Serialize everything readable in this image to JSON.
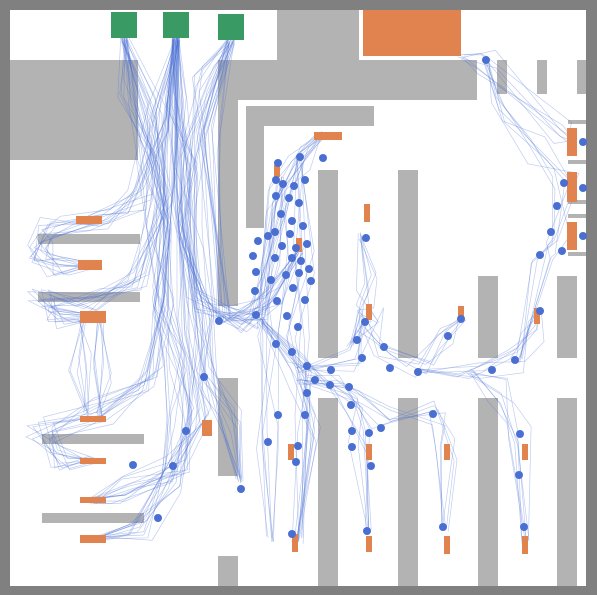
{
  "map": {
    "colors": {
      "frame": "#808080",
      "floor": "#ffffff",
      "wall": "#b3b3b3",
      "station": "#e0834f",
      "goal": "#3a9a64",
      "agent": "#4a6fd3"
    },
    "legend": {
      "goal_zones": 3,
      "stations": 22,
      "visible_agents": 96
    }
  }
}
